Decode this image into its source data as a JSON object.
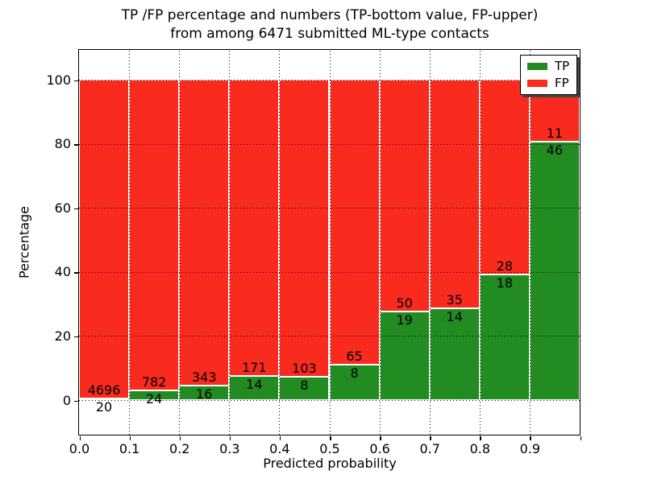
{
  "title": {
    "line1": "TP /FP percentage and numbers (TP-bottom value, FP-upper)",
    "line2": "from among 6471 submitted ML-type contacts"
  },
  "chart_data": {
    "type": "bar",
    "stacked": true,
    "normalization": "percent",
    "title": "TP /FP percentage and numbers (TP-bottom value, FP-upper) from among 6471 submitted ML-type contacts",
    "xlabel": "Predicted probability",
    "ylabel": "Percentage",
    "total_contacts": 6471,
    "bin_starts": [
      0.0,
      0.1,
      0.2,
      0.3,
      0.4,
      0.5,
      0.6,
      0.7,
      0.8,
      0.9
    ],
    "bin_width": 0.1,
    "x_tick_labels": [
      "0.0",
      "0.1",
      "0.2",
      "0.3",
      "0.4",
      "0.5",
      "0.6",
      "0.7",
      "0.8",
      "0.9"
    ],
    "y_ticks": [
      0,
      20,
      40,
      60,
      80,
      100
    ],
    "y_tick_labels": [
      "0",
      "20",
      "40",
      "60",
      "80",
      "100"
    ],
    "xlim": [
      0.0,
      1.0
    ],
    "ylim": [
      -10.8,
      109.3
    ],
    "grid": true,
    "legend_position": "upper right",
    "series": [
      {
        "name": "TP",
        "color": "#228b22",
        "counts": [
          20,
          24,
          16,
          14,
          8,
          8,
          19,
          14,
          18,
          46
        ]
      },
      {
        "name": "FP",
        "color": "#f92b1e",
        "counts": [
          4696,
          782,
          343,
          171,
          103,
          65,
          50,
          35,
          28,
          11
        ]
      }
    ],
    "tp_percent_per_bin": [
      0.42,
      2.98,
      4.46,
      7.57,
      7.21,
      10.96,
      27.54,
      28.57,
      39.13,
      80.7
    ]
  },
  "colors": {
    "tp": "#228b22",
    "fp": "#f92b1e",
    "background": "#ffffff",
    "grid": "#000000"
  }
}
